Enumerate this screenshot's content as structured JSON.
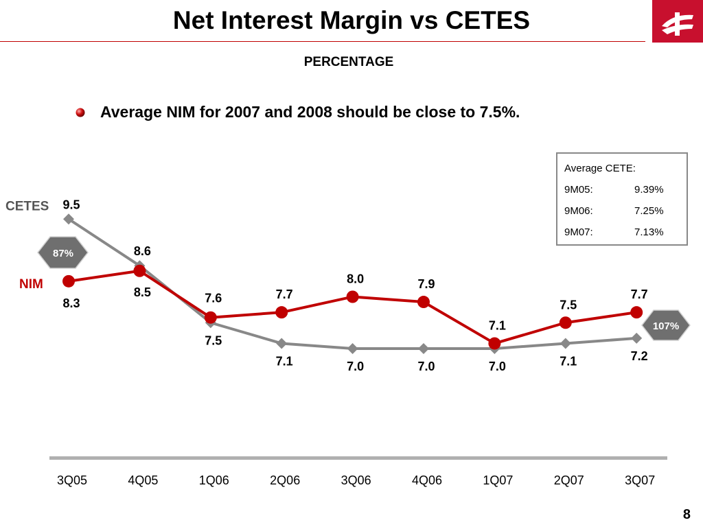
{
  "slide": {
    "title": "Net Interest Margin vs CETES",
    "subtitle": "PERCENTAGE",
    "bullet": "Average NIM for 2007 and 2008 should be close to 7.5%.",
    "page_number": "8"
  },
  "cete_box": {
    "heading": "Average CETE:",
    "rows": [
      {
        "period": "9M05:",
        "value": "9.39%"
      },
      {
        "period": "9M06:",
        "value": "7.25%"
      },
      {
        "period": "9M07:",
        "value": "7.13%"
      }
    ]
  },
  "badges": {
    "left": "87%",
    "right": "107%"
  },
  "colors": {
    "nim": "#c00000",
    "cetes": "#888888",
    "brand": "#c8102e"
  },
  "chart_data": {
    "type": "line",
    "categories": [
      "3Q05",
      "4Q05",
      "1Q06",
      "2Q06",
      "3Q06",
      "4Q06",
      "1Q07",
      "2Q07",
      "3Q07"
    ],
    "series": [
      {
        "name": "CETES",
        "values": [
          9.5,
          8.6,
          7.5,
          7.1,
          7.0,
          7.0,
          7.0,
          7.1,
          7.2
        ]
      },
      {
        "name": "NIM",
        "values": [
          8.3,
          8.5,
          7.6,
          7.7,
          8.0,
          7.9,
          7.1,
          7.5,
          7.7
        ]
      }
    ],
    "ylim": [
      6.5,
      10
    ],
    "grid": false
  }
}
